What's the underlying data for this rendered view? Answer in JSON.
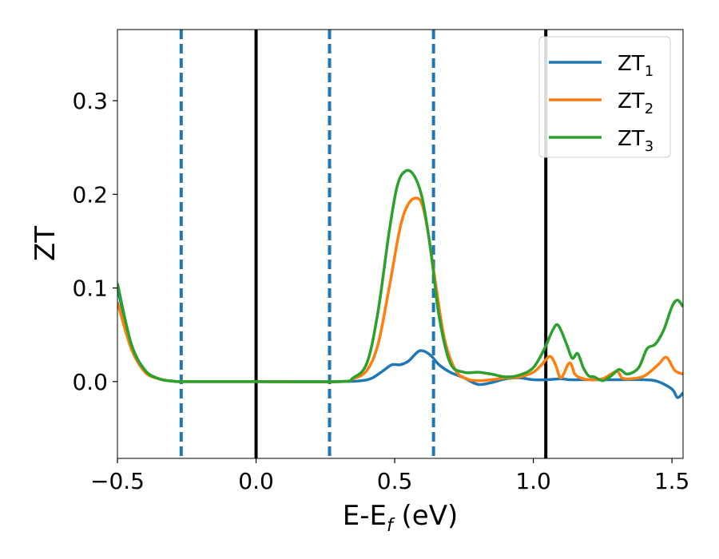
{
  "chart_data": {
    "type": "line",
    "title": "",
    "xlabel": {
      "main": "E-E",
      "sub": "f",
      "unit": " (eV)"
    },
    "ylabel": "ZT",
    "xlim": [
      -0.5,
      1.54
    ],
    "ylim": [
      -0.082,
      0.376
    ],
    "xticks": [
      -0.5,
      0.0,
      0.5,
      1.0,
      1.5
    ],
    "xtick_labels": [
      "−0.5",
      "0.0",
      "0.5",
      "1.0",
      "1.5"
    ],
    "yticks": [
      0.0,
      0.1,
      0.2,
      0.3
    ],
    "ytick_labels": [
      "0.0",
      "0.1",
      "0.2",
      "0.3"
    ],
    "grid": false,
    "legend_position": "top-right",
    "series": [
      {
        "name": "ZT",
        "name_sub": "1",
        "color": "#1f77b4",
        "x": [
          -0.5,
          -0.45,
          -0.4,
          -0.35,
          -0.3,
          -0.25,
          0.0,
          0.3,
          0.38,
          0.42,
          0.46,
          0.49,
          0.52,
          0.55,
          0.58,
          0.6,
          0.63,
          0.66,
          0.7,
          0.75,
          0.8,
          0.85,
          0.9,
          0.95,
          1.0,
          1.05,
          1.1,
          1.13,
          1.2,
          1.3,
          1.4,
          1.45,
          1.5,
          1.52,
          1.54
        ],
        "y": [
          0.1,
          0.04,
          0.012,
          0.003,
          0.0005,
          0.0,
          0.0,
          0.0,
          0.001,
          0.004,
          0.012,
          0.018,
          0.018,
          0.022,
          0.031,
          0.033,
          0.028,
          0.018,
          0.01,
          0.004,
          -0.003,
          -0.001,
          0.003,
          0.004,
          0.002,
          0.002,
          0.003,
          0.002,
          0.002,
          0.002,
          0.002,
          0.0,
          -0.008,
          -0.017,
          -0.012
        ]
      },
      {
        "name": "ZT",
        "name_sub": "2",
        "color": "#ff7f0e",
        "x": [
          -0.5,
          -0.45,
          -0.4,
          -0.35,
          -0.3,
          -0.25,
          0.0,
          0.3,
          0.35,
          0.4,
          0.44,
          0.48,
          0.52,
          0.55,
          0.58,
          0.6,
          0.62,
          0.65,
          0.68,
          0.72,
          0.76,
          0.8,
          0.85,
          0.9,
          0.95,
          1.0,
          1.03,
          1.06,
          1.08,
          1.1,
          1.13,
          1.15,
          1.17,
          1.2,
          1.25,
          1.3,
          1.32,
          1.35,
          1.4,
          1.45,
          1.48,
          1.51,
          1.54
        ],
        "y": [
          0.085,
          0.035,
          0.01,
          0.003,
          0.0005,
          0.0,
          0.0,
          0.0,
          0.003,
          0.012,
          0.04,
          0.1,
          0.165,
          0.19,
          0.196,
          0.188,
          0.16,
          0.1,
          0.045,
          0.012,
          0.003,
          0.001,
          0.002,
          0.004,
          0.005,
          0.01,
          0.018,
          0.027,
          0.018,
          0.004,
          0.02,
          0.008,
          0.004,
          0.002,
          0.003,
          0.011,
          0.004,
          0.003,
          0.006,
          0.018,
          0.026,
          0.012,
          0.008
        ]
      },
      {
        "name": "ZT",
        "name_sub": "3",
        "color": "#2ca02c",
        "x": [
          -0.5,
          -0.45,
          -0.4,
          -0.35,
          -0.3,
          -0.25,
          0.0,
          0.3,
          0.35,
          0.4,
          0.44,
          0.48,
          0.51,
          0.54,
          0.57,
          0.6,
          0.63,
          0.66,
          0.7,
          0.75,
          0.8,
          0.85,
          0.9,
          0.95,
          1.0,
          1.04,
          1.07,
          1.09,
          1.12,
          1.14,
          1.16,
          1.18,
          1.2,
          1.22,
          1.25,
          1.28,
          1.31,
          1.34,
          1.38,
          1.41,
          1.44,
          1.47,
          1.5,
          1.52,
          1.54
        ],
        "y": [
          0.105,
          0.04,
          0.012,
          0.003,
          0.0005,
          0.0,
          0.0,
          0.0,
          0.004,
          0.02,
          0.075,
          0.16,
          0.21,
          0.225,
          0.22,
          0.195,
          0.14,
          0.07,
          0.02,
          0.01,
          0.01,
          0.008,
          0.005,
          0.007,
          0.015,
          0.035,
          0.055,
          0.06,
          0.04,
          0.025,
          0.03,
          0.015,
          0.006,
          0.005,
          0.001,
          0.006,
          0.013,
          0.008,
          0.015,
          0.035,
          0.04,
          0.055,
          0.08,
          0.087,
          0.08
        ]
      }
    ],
    "vlines": [
      {
        "x": -0.27,
        "color": "#1f77b4",
        "style": "dashed"
      },
      {
        "x": 0.0,
        "color": "#000000",
        "style": "solid"
      },
      {
        "x": 0.265,
        "color": "#1f77b4",
        "style": "dashed"
      },
      {
        "x": 0.64,
        "color": "#1f77b4",
        "style": "dashed"
      },
      {
        "x": 1.045,
        "color": "#000000",
        "style": "solid"
      }
    ]
  }
}
